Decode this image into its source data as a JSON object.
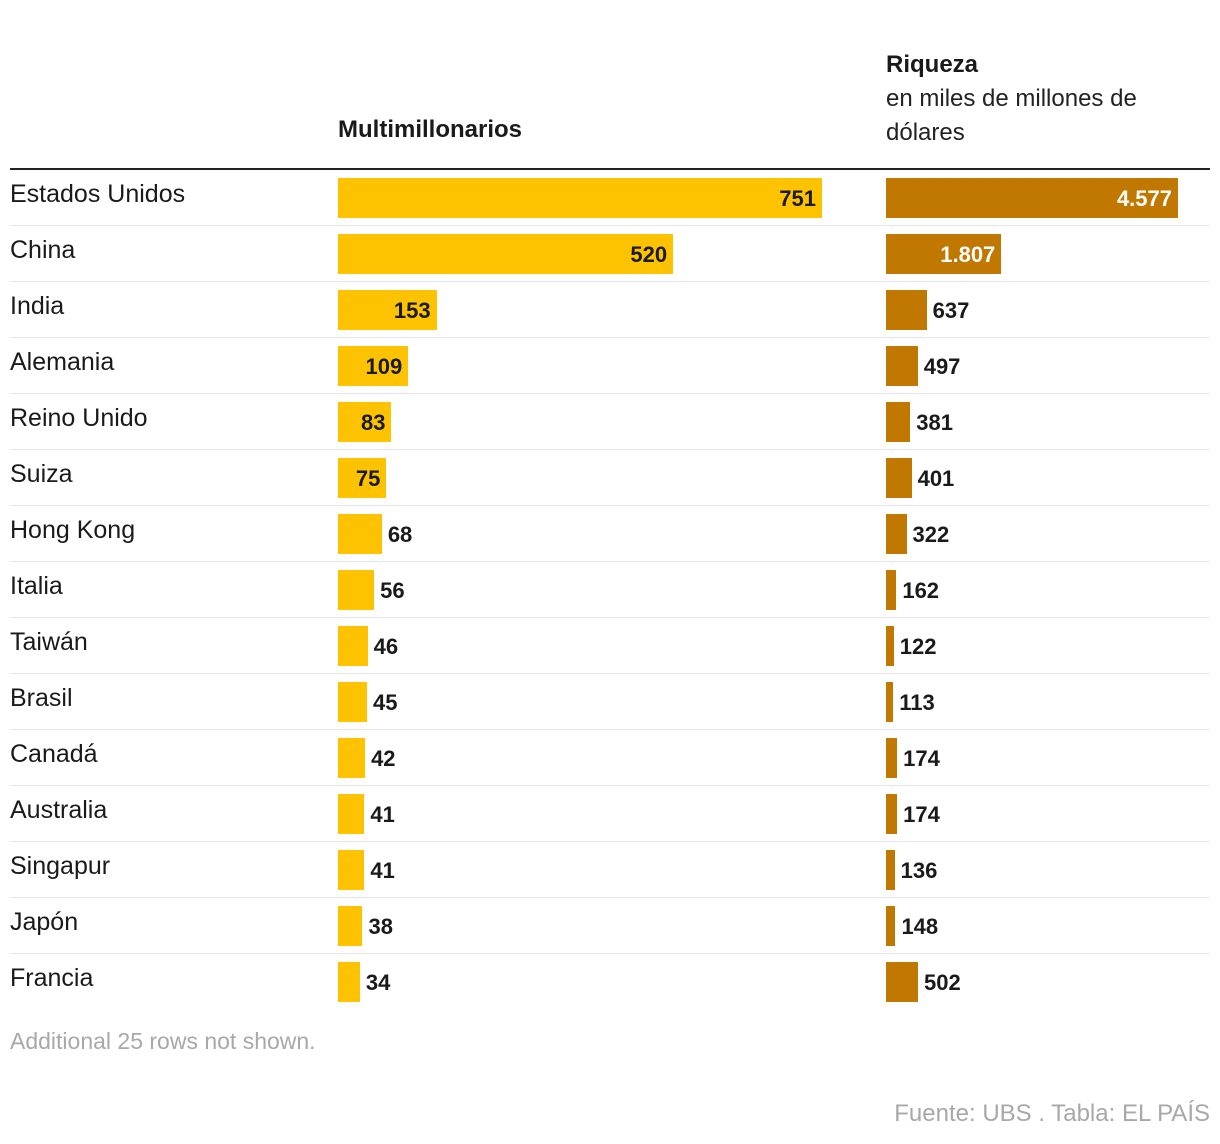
{
  "chart_data": {
    "type": "table",
    "columns": [
      {
        "key": "multimillonarios",
        "title": "Multimillonarios",
        "subtitle": ""
      },
      {
        "key": "riqueza",
        "title": "Riqueza",
        "subtitle": "en miles de millones de dólares"
      }
    ],
    "rows": [
      {
        "country": "Estados Unidos",
        "multimillonarios": 751,
        "multimillonarios_label": "751",
        "riqueza": 4577,
        "riqueza_label": "4.577"
      },
      {
        "country": "China",
        "multimillonarios": 520,
        "multimillonarios_label": "520",
        "riqueza": 1807,
        "riqueza_label": "1.807"
      },
      {
        "country": "India",
        "multimillonarios": 153,
        "multimillonarios_label": "153",
        "riqueza": 637,
        "riqueza_label": "637"
      },
      {
        "country": "Alemania",
        "multimillonarios": 109,
        "multimillonarios_label": "109",
        "riqueza": 497,
        "riqueza_label": "497"
      },
      {
        "country": "Reino Unido",
        "multimillonarios": 83,
        "multimillonarios_label": "83",
        "riqueza": 381,
        "riqueza_label": "381"
      },
      {
        "country": "Suiza",
        "multimillonarios": 75,
        "multimillonarios_label": "75",
        "riqueza": 401,
        "riqueza_label": "401"
      },
      {
        "country": "Hong Kong",
        "multimillonarios": 68,
        "multimillonarios_label": "68",
        "riqueza": 322,
        "riqueza_label": "322"
      },
      {
        "country": "Italia",
        "multimillonarios": 56,
        "multimillonarios_label": "56",
        "riqueza": 162,
        "riqueza_label": "162"
      },
      {
        "country": "Taiwán",
        "multimillonarios": 46,
        "multimillonarios_label": "46",
        "riqueza": 122,
        "riqueza_label": "122"
      },
      {
        "country": "Brasil",
        "multimillonarios": 45,
        "multimillonarios_label": "45",
        "riqueza": 113,
        "riqueza_label": "113"
      },
      {
        "country": "Canadá",
        "multimillonarios": 42,
        "multimillonarios_label": "42",
        "riqueza": 174,
        "riqueza_label": "174"
      },
      {
        "country": "Australia",
        "multimillonarios": 41,
        "multimillonarios_label": "41",
        "riqueza": 174,
        "riqueza_label": "174"
      },
      {
        "country": "Singapur",
        "multimillonarios": 41,
        "multimillonarios_label": "41",
        "riqueza": 136,
        "riqueza_label": "136"
      },
      {
        "country": "Japón",
        "multimillonarios": 38,
        "multimillonarios_label": "38",
        "riqueza": 148,
        "riqueza_label": "148"
      },
      {
        "country": "Francia",
        "multimillonarios": 34,
        "multimillonarios_label": "34",
        "riqueza": 502,
        "riqueza_label": "502"
      }
    ],
    "colors": {
      "multimillonarios": "#fdc300",
      "riqueza": "#c07800"
    },
    "note": "Additional 25 rows not shown.",
    "source": "Fuente: UBS . Tabla: EL PAÍS"
  }
}
